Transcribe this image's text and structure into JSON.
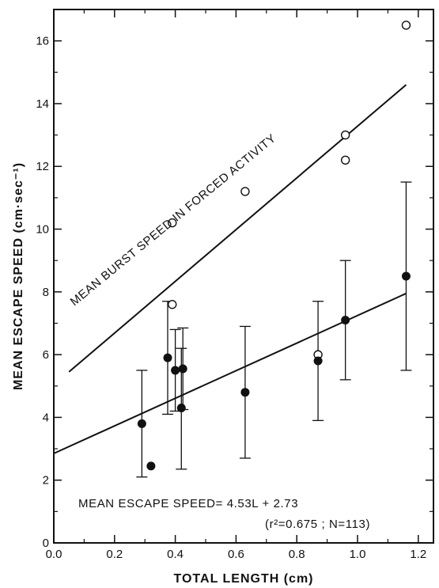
{
  "chart_data": {
    "type": "scatter",
    "xlabel": "TOTAL LENGTH (cm)",
    "ylabel": "MEAN ESCAPE SPEED (cm·sec⁻¹)",
    "xlim": [
      0.0,
      1.25
    ],
    "ylim": [
      0,
      17
    ],
    "x_ticks": [
      0.0,
      0.2,
      0.4,
      0.6,
      0.8,
      1.0,
      1.2
    ],
    "x_tick_labels": [
      "0.0",
      "0.2",
      "0.4",
      "0.6",
      "0.8",
      "1.0",
      "1.2"
    ],
    "y_ticks": [
      0,
      2,
      4,
      6,
      8,
      10,
      12,
      14,
      16
    ],
    "y_tick_labels": [
      "0",
      "2",
      "4",
      "6",
      "8",
      "10",
      "12",
      "14",
      "16"
    ],
    "grid": false,
    "series": [
      {
        "marker": "open-circle",
        "points": [
          {
            "x": 0.39,
            "y": 10.2
          },
          {
            "x": 0.39,
            "y": 7.6
          },
          {
            "x": 0.63,
            "y": 11.2
          },
          {
            "x": 0.87,
            "y": 6.0
          },
          {
            "x": 0.96,
            "y": 13.0
          },
          {
            "x": 0.96,
            "y": 12.2
          },
          {
            "x": 1.16,
            "y": 16.5
          }
        ]
      },
      {
        "marker": "filled-circle",
        "points": [
          {
            "x": 0.29,
            "y": 3.8,
            "lo": 2.1,
            "hi": 5.5
          },
          {
            "x": 0.32,
            "y": 2.45
          },
          {
            "x": 0.375,
            "y": 5.9,
            "lo": 4.1,
            "hi": 7.7
          },
          {
            "x": 0.4,
            "y": 5.5,
            "lo": 4.2,
            "hi": 6.8
          },
          {
            "x": 0.42,
            "y": 4.3,
            "lo": 2.35,
            "hi": 6.2
          },
          {
            "x": 0.425,
            "y": 5.55,
            "lo": 4.25,
            "hi": 6.85
          },
          {
            "x": 0.63,
            "y": 4.8,
            "lo": 2.7,
            "hi": 6.9
          },
          {
            "x": 0.87,
            "y": 5.8,
            "lo": 3.9,
            "hi": 7.7
          },
          {
            "x": 0.96,
            "y": 7.1,
            "lo": 5.2,
            "hi": 9.0
          },
          {
            "x": 1.16,
            "y": 8.5,
            "lo": 5.5,
            "hi": 11.5
          }
        ]
      }
    ],
    "lines": [
      {
        "x": [
          0.05,
          1.16
        ],
        "y": [
          5.45,
          14.6
        ]
      },
      {
        "x": [
          0.0,
          1.16
        ],
        "y": [
          2.85,
          7.95
        ]
      }
    ],
    "annotations": [
      "MEAN BURST SPEED IN FORCED ACTIVITY",
      "MEAN ESCAPE SPEED= 4.53L + 2.73",
      "(r²=0.675 ; N=113)"
    ]
  }
}
